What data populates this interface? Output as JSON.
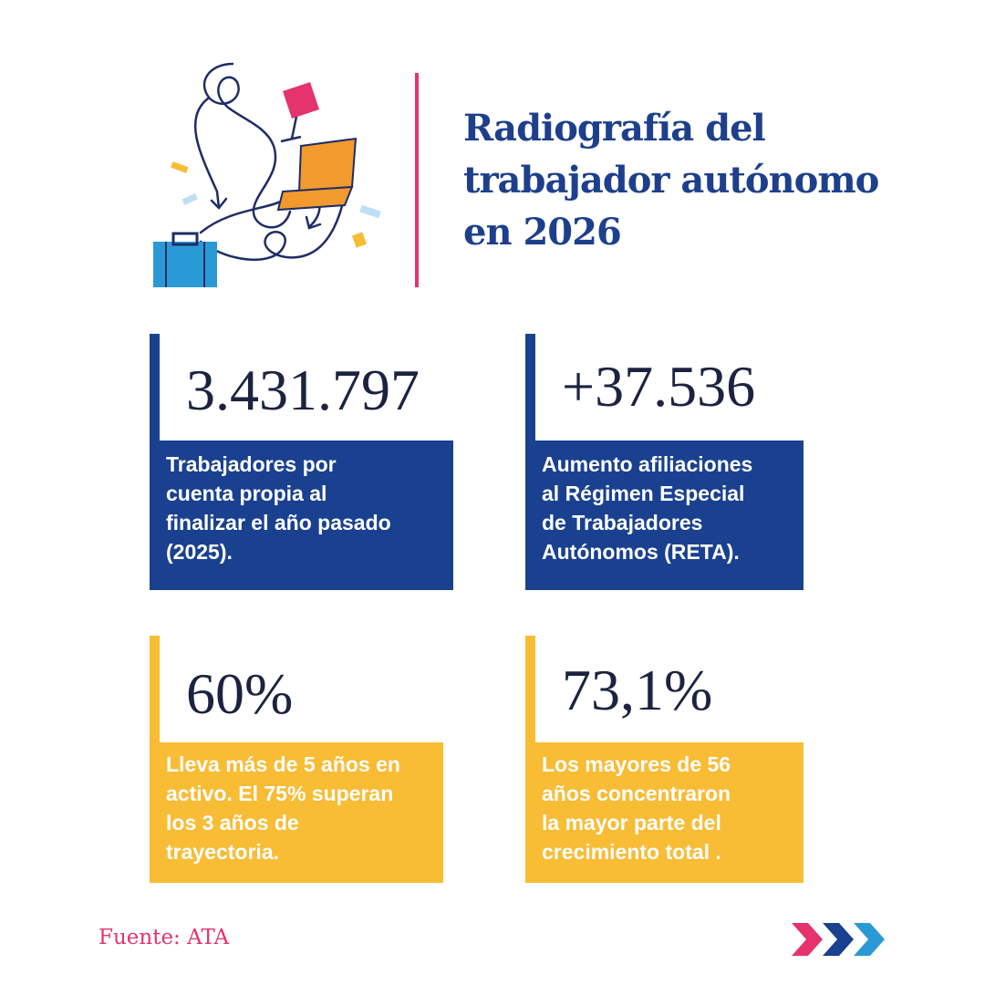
{
  "header": {
    "title_lines": [
      "Radiografía del",
      "trabajador autónomo",
      "en 2026"
    ]
  },
  "stats": [
    {
      "value": "3.431.797",
      "description": "Trabajadores por\ncuenta propia al\nfinalizar el año pasado\n(2025)."
    },
    {
      "value": "+37.536",
      "description": "Aumento afiliaciones\nal Régimen Especial\nde Trabajadores\nAutónomos (RETA)."
    },
    {
      "value": "60%",
      "description": "Lleva más de 5 años en\nactivo. El 75% superan\nlos 3 años de\ntrayectoria."
    },
    {
      "value": "73,1%",
      "description": " Los mayores de 56\naños concentraron\nla mayor parte del\ncrecimiento total ."
    }
  ],
  "footer": {
    "source": "Fuente: ATA"
  },
  "colors": {
    "navy": "#1a4190",
    "yellow": "#f8bc35",
    "pink": "#e5336e",
    "light_blue": "#2a9ad6",
    "orange": "#f29a2e"
  },
  "icons": [
    "worker-illustration",
    "briefcase-icon",
    "laptop-icon",
    "lamp-icon",
    "next-arrows-icon"
  ]
}
